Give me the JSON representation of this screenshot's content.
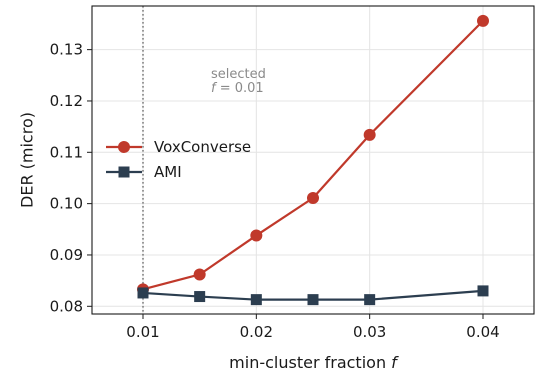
{
  "chart_data": {
    "type": "line",
    "xlabel": "min-cluster fraction",
    "xlabel_var": "f",
    "ylabel": "DER (micro)",
    "xlim": [
      0.0055,
      0.0445
    ],
    "ylim": [
      0.0785,
      0.1385
    ],
    "xticks": [
      0.01,
      0.02,
      0.03,
      0.04
    ],
    "xtick_labels": [
      "0.01",
      "0.02",
      "0.03",
      "0.04"
    ],
    "yticks": [
      0.08,
      0.09,
      0.1,
      0.11,
      0.12,
      0.13
    ],
    "ytick_labels": [
      "0.08",
      "0.09",
      "0.10",
      "0.11",
      "0.12",
      "0.13"
    ],
    "grid": true,
    "legend_position": "center-left",
    "x": [
      0.01,
      0.015,
      0.02,
      0.025,
      0.03,
      0.04
    ],
    "series": [
      {
        "name": "VoxConverse",
        "marker": "circle",
        "color": "#c0392b",
        "values": [
          0.0833,
          0.0862,
          0.0938,
          0.1011,
          0.1134,
          0.1356
        ]
      },
      {
        "name": "AMI",
        "marker": "square",
        "color": "#2c3e50",
        "values": [
          0.0826,
          0.0819,
          0.0813,
          0.0813,
          0.0813,
          0.083
        ]
      }
    ],
    "vline": {
      "x": 0.01,
      "style": "dotted",
      "color": "#808080"
    },
    "annotation": {
      "line1": "selected",
      "line2_var": "f",
      "line2_rest": " = 0.01",
      "x": 0.016,
      "y": 0.1245
    }
  }
}
